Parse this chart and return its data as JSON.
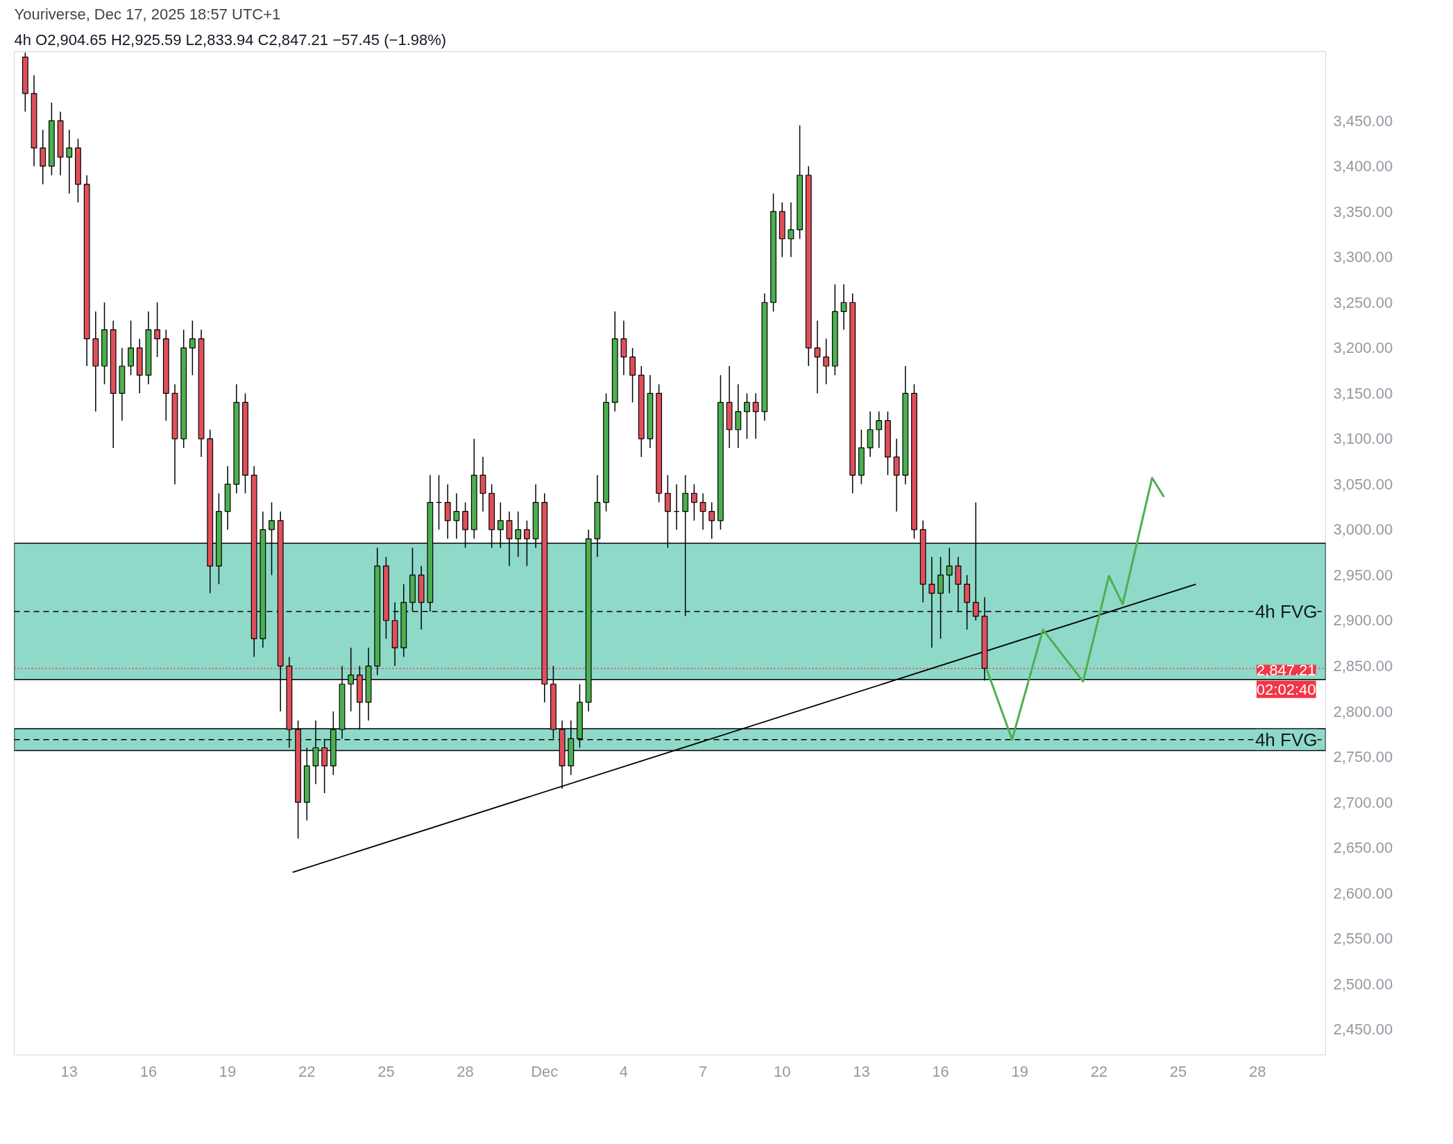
{
  "chart_data": {
    "type": "candlestick",
    "title": "Youriverse, Dec 17, 2025 18:57 UTC+1",
    "subtitle": "4h  O2,904.65  H2,925.59  L2,833.94  C2,847.21  −57.45 (−1.98%)",
    "x": [
      "2025-11-11T08:00",
      "2025-11-11T16:00",
      "2025-11-12T00:00",
      "2025-11-12T08:00",
      "2025-11-12T16:00",
      "2025-11-13T00:00",
      "2025-11-13T08:00",
      "2025-11-13T16:00",
      "2025-11-14T00:00",
      "2025-11-14T08:00",
      "2025-11-14T16:00",
      "2025-11-15T00:00",
      "2025-11-15T08:00",
      "2025-11-15T16:00",
      "2025-11-16T00:00",
      "2025-11-16T08:00",
      "2025-11-16T16:00",
      "2025-11-17T00:00",
      "2025-11-17T08:00",
      "2025-11-17T16:00",
      "2025-11-18T00:00",
      "2025-11-18T08:00",
      "2025-11-18T16:00",
      "2025-11-19T00:00",
      "2025-11-19T08:00",
      "2025-11-19T16:00",
      "2025-11-20T00:00",
      "2025-11-20T08:00",
      "2025-11-20T16:00",
      "2025-11-21T00:00",
      "2025-11-21T08:00",
      "2025-11-21T16:00",
      "2025-11-22T00:00",
      "2025-11-22T08:00",
      "2025-11-22T16:00",
      "2025-11-23T00:00",
      "2025-11-23T08:00",
      "2025-11-23T16:00",
      "2025-11-24T00:00",
      "2025-11-24T08:00",
      "2025-11-24T16:00",
      "2025-11-25T00:00",
      "2025-11-25T08:00",
      "2025-11-25T16:00",
      "2025-11-26T00:00",
      "2025-11-26T08:00",
      "2025-11-26T16:00",
      "2025-11-27T00:00",
      "2025-11-27T08:00",
      "2025-11-27T16:00",
      "2025-11-28T00:00",
      "2025-11-28T08:00",
      "2025-11-28T16:00",
      "2025-11-29T00:00",
      "2025-11-29T08:00",
      "2025-11-29T16:00",
      "2025-11-30T00:00",
      "2025-11-30T08:00",
      "2025-11-30T16:00",
      "2025-12-01T00:00",
      "2025-12-01T08:00",
      "2025-12-01T16:00",
      "2025-12-02T00:00",
      "2025-12-02T08:00",
      "2025-12-02T16:00",
      "2025-12-03T00:00",
      "2025-12-03T08:00",
      "2025-12-03T16:00",
      "2025-12-04T00:00",
      "2025-12-04T08:00",
      "2025-12-04T16:00",
      "2025-12-05T00:00",
      "2025-12-05T08:00",
      "2025-12-05T16:00",
      "2025-12-06T00:00",
      "2025-12-06T08:00",
      "2025-12-06T16:00",
      "2025-12-07T00:00",
      "2025-12-07T08:00",
      "2025-12-07T16:00",
      "2025-12-08T00:00",
      "2025-12-08T08:00",
      "2025-12-08T16:00",
      "2025-12-09T00:00",
      "2025-12-09T08:00",
      "2025-12-09T16:00",
      "2025-12-10T00:00",
      "2025-12-10T08:00",
      "2025-12-10T16:00",
      "2025-12-11T00:00",
      "2025-12-11T08:00",
      "2025-12-11T16:00",
      "2025-12-12T00:00",
      "2025-12-12T08:00",
      "2025-12-12T16:00",
      "2025-12-13T00:00",
      "2025-12-13T08:00",
      "2025-12-13T16:00",
      "2025-12-14T00:00",
      "2025-12-14T08:00",
      "2025-12-14T16:00",
      "2025-12-15T00:00",
      "2025-12-15T08:00",
      "2025-12-15T16:00",
      "2025-12-16T00:00",
      "2025-12-16T08:00",
      "2025-12-16T16:00",
      "2025-12-17T00:00",
      "2025-12-17T08:00",
      "2025-12-17T16:00"
    ],
    "ohlc": [
      [
        3520,
        3525,
        3460,
        3480
      ],
      [
        3480,
        3500,
        3400,
        3420
      ],
      [
        3420,
        3440,
        3380,
        3400
      ],
      [
        3400,
        3470,
        3390,
        3450
      ],
      [
        3450,
        3460,
        3390,
        3410
      ],
      [
        3410,
        3440,
        3370,
        3420
      ],
      [
        3420,
        3430,
        3360,
        3380
      ],
      [
        3380,
        3390,
        3180,
        3210
      ],
      [
        3210,
        3240,
        3130,
        3180
      ],
      [
        3180,
        3250,
        3160,
        3220
      ],
      [
        3220,
        3230,
        3090,
        3150
      ],
      [
        3150,
        3200,
        3120,
        3180
      ],
      [
        3180,
        3230,
        3170,
        3200
      ],
      [
        3200,
        3210,
        3150,
        3170
      ],
      [
        3170,
        3240,
        3160,
        3220
      ],
      [
        3220,
        3250,
        3190,
        3210
      ],
      [
        3210,
        3220,
        3120,
        3150
      ],
      [
        3150,
        3160,
        3050,
        3100
      ],
      [
        3100,
        3220,
        3090,
        3200
      ],
      [
        3200,
        3230,
        3170,
        3210
      ],
      [
        3210,
        3220,
        3080,
        3100
      ],
      [
        3100,
        3110,
        2930,
        2960
      ],
      [
        2960,
        3040,
        2940,
        3020
      ],
      [
        3020,
        3070,
        3000,
        3050
      ],
      [
        3050,
        3160,
        3040,
        3140
      ],
      [
        3140,
        3150,
        3040,
        3060
      ],
      [
        3060,
        3070,
        2860,
        2880
      ],
      [
        2880,
        3020,
        2870,
        3000
      ],
      [
        3000,
        3030,
        2950,
        3010
      ],
      [
        3010,
        3020,
        2800,
        2850
      ],
      [
        2850,
        2860,
        2760,
        2780
      ],
      [
        2780,
        2790,
        2660,
        2700
      ],
      [
        2700,
        2760,
        2680,
        2740
      ],
      [
        2740,
        2790,
        2720,
        2760
      ],
      [
        2760,
        2770,
        2710,
        2740
      ],
      [
        2740,
        2800,
        2730,
        2780
      ],
      [
        2780,
        2850,
        2770,
        2830
      ],
      [
        2830,
        2870,
        2800,
        2840
      ],
      [
        2840,
        2850,
        2780,
        2810
      ],
      [
        2810,
        2870,
        2790,
        2850
      ],
      [
        2850,
        2980,
        2840,
        2960
      ],
      [
        2960,
        2970,
        2880,
        2900
      ],
      [
        2900,
        2920,
        2850,
        2870
      ],
      [
        2870,
        2940,
        2860,
        2920
      ],
      [
        2920,
        2980,
        2910,
        2950
      ],
      [
        2950,
        2960,
        2890,
        2920
      ],
      [
        2920,
        3060,
        2910,
        3030
      ],
      [
        3030,
        3060,
        3000,
        3030
      ],
      [
        3030,
        3050,
        2990,
        3010
      ],
      [
        3010,
        3040,
        2990,
        3020
      ],
      [
        3020,
        3030,
        2980,
        3000
      ],
      [
        3000,
        3100,
        2990,
        3060
      ],
      [
        3060,
        3080,
        3020,
        3040
      ],
      [
        3040,
        3050,
        2980,
        3000
      ],
      [
        3000,
        3030,
        2980,
        3010
      ],
      [
        3010,
        3020,
        2960,
        2990
      ],
      [
        2990,
        3020,
        2970,
        3000
      ],
      [
        3000,
        3010,
        2960,
        2990
      ],
      [
        2990,
        3050,
        2980,
        3030
      ],
      [
        3030,
        3040,
        2810,
        2830
      ],
      [
        2830,
        2850,
        2770,
        2780
      ],
      [
        2780,
        2790,
        2715,
        2740
      ],
      [
        2740,
        2790,
        2730,
        2770
      ],
      [
        2770,
        2830,
        2760,
        2810
      ],
      [
        2810,
        3000,
        2800,
        2990
      ],
      [
        2990,
        3060,
        2970,
        3030
      ],
      [
        3030,
        3150,
        3020,
        3140
      ],
      [
        3140,
        3240,
        3130,
        3210
      ],
      [
        3210,
        3230,
        3170,
        3190
      ],
      [
        3190,
        3200,
        3140,
        3170
      ],
      [
        3170,
        3180,
        3080,
        3100
      ],
      [
        3100,
        3170,
        3090,
        3150
      ],
      [
        3150,
        3160,
        3030,
        3040
      ],
      [
        3040,
        3060,
        2980,
        3020
      ],
      [
        3020,
        3050,
        3000,
        3020
      ],
      [
        3020,
        3060,
        2905,
        3040
      ],
      [
        3040,
        3050,
        3010,
        3030
      ],
      [
        3030,
        3040,
        3000,
        3020
      ],
      [
        3020,
        3030,
        2990,
        3010
      ],
      [
        3010,
        3170,
        3000,
        3140
      ],
      [
        3140,
        3180,
        3090,
        3110
      ],
      [
        3110,
        3160,
        3090,
        3130
      ],
      [
        3130,
        3150,
        3100,
        3140
      ],
      [
        3140,
        3150,
        3100,
        3130
      ],
      [
        3130,
        3260,
        3120,
        3250
      ],
      [
        3250,
        3370,
        3240,
        3350
      ],
      [
        3350,
        3360,
        3300,
        3320
      ],
      [
        3320,
        3360,
        3300,
        3330
      ],
      [
        3330,
        3445,
        3320,
        3390
      ],
      [
        3390,
        3400,
        3180,
        3200
      ],
      [
        3200,
        3230,
        3150,
        3190
      ],
      [
        3190,
        3210,
        3160,
        3180
      ],
      [
        3180,
        3270,
        3170,
        3240
      ],
      [
        3240,
        3270,
        3220,
        3250
      ],
      [
        3250,
        3260,
        3040,
        3060
      ],
      [
        3060,
        3110,
        3050,
        3090
      ],
      [
        3090,
        3130,
        3080,
        3110
      ],
      [
        3110,
        3130,
        3090,
        3120
      ],
      [
        3120,
        3130,
        3060,
        3080
      ],
      [
        3080,
        3100,
        3020,
        3060
      ],
      [
        3060,
        3180,
        3050,
        3150
      ],
      [
        3150,
        3160,
        2990,
        3000
      ],
      [
        3000,
        3010,
        2920,
        2940
      ],
      [
        2940,
        2970,
        2870,
        2930
      ],
      [
        2930,
        2970,
        2880,
        2950
      ],
      [
        2950,
        2980,
        2930,
        2960
      ],
      [
        2960,
        2970,
        2910,
        2940
      ],
      [
        2940,
        2950,
        2890,
        2920
      ],
      [
        2920,
        3030,
        2900,
        2904.65
      ],
      [
        2904.65,
        2925.59,
        2833.94,
        2847.21
      ]
    ],
    "series": [
      {
        "type": "line",
        "color": "#000000",
        "x": [
          "2025-11-21T11:00",
          "2025-12-25T16:00"
        ],
        "values": [
          2623,
          2940
        ]
      },
      {
        "type": "line",
        "color": "#4caf50",
        "x": [
          "2025-12-17T18:00",
          "2025-12-18T17:00",
          "2025-12-19T21:00",
          "2025-12-21T09:30",
          "2025-12-22T09:00",
          "2025-12-22T21:30",
          "2025-12-24T00:15",
          "2025-12-24T11:00"
        ],
        "values": [
          2846,
          2769,
          2890,
          2833,
          2949,
          2918,
          3057,
          3036
        ]
      }
    ],
    "bands": [
      {
        "axis": "y",
        "from": 2835,
        "to": 2985,
        "label": "4h FVG",
        "color": "#8fd9c9"
      },
      {
        "axis": "y",
        "from": 2757,
        "to": 2781,
        "label": "4h FVG",
        "color": "#8fd9c9"
      }
    ],
    "ref_lines": [
      {
        "axis": "y",
        "value": 2910,
        "label": null,
        "color": "#000000",
        "line_style": "dashed"
      },
      {
        "axis": "y",
        "value": 2769,
        "label": null,
        "color": "#000000",
        "line_style": "dashed"
      },
      {
        "axis": "y",
        "value": 2847.21,
        "label": "2,847.21",
        "color": "#f23645",
        "line_style": "dotted"
      }
    ],
    "annotations": [
      "02:02:40"
    ],
    "xlim": [
      "2025-11-10T22:00",
      "2025-12-30T14:00"
    ],
    "xticks": [
      {
        "value": "2025-11-13",
        "label": "13"
      },
      {
        "value": "2025-11-16",
        "label": "16"
      },
      {
        "value": "2025-11-19",
        "label": "19"
      },
      {
        "value": "2025-11-22",
        "label": "22"
      },
      {
        "value": "2025-11-25",
        "label": "25"
      },
      {
        "value": "2025-11-28",
        "label": "28"
      },
      {
        "value": "2025-12-01",
        "label": "Dec"
      },
      {
        "value": "2025-12-04",
        "label": "4"
      },
      {
        "value": "2025-12-07",
        "label": "7"
      },
      {
        "value": "2025-12-10",
        "label": "10"
      },
      {
        "value": "2025-12-13",
        "label": "13"
      },
      {
        "value": "2025-12-16",
        "label": "16"
      },
      {
        "value": "2025-12-19",
        "label": "19"
      },
      {
        "value": "2025-12-22",
        "label": "22"
      },
      {
        "value": "2025-12-25",
        "label": "25"
      },
      {
        "value": "2025-12-28",
        "label": "28"
      }
    ],
    "ylim": [
      2422,
      3526
    ],
    "yticks": [
      {
        "value": 2450,
        "label": "2,450.00"
      },
      {
        "value": 2500,
        "label": "2,500.00"
      },
      {
        "value": 2550,
        "label": "2,550.00"
      },
      {
        "value": 2600,
        "label": "2,600.00"
      },
      {
        "value": 2650,
        "label": "2,650.00"
      },
      {
        "value": 2700,
        "label": "2,700.00"
      },
      {
        "value": 2750,
        "label": "2,750.00"
      },
      {
        "value": 2800,
        "label": "2,800.00"
      },
      {
        "value": 2850,
        "label": "2,850.00"
      },
      {
        "value": 2900,
        "label": "2,900.00"
      },
      {
        "value": 2950,
        "label": "2,950.00"
      },
      {
        "value": 3000,
        "label": "3,000.00"
      },
      {
        "value": 3050,
        "label": "3,050.00"
      },
      {
        "value": 3100,
        "label": "3,100.00"
      },
      {
        "value": 3150,
        "label": "3,150.00"
      },
      {
        "value": 3200,
        "label": "3,200.00"
      },
      {
        "value": 3250,
        "label": "3,250.00"
      },
      {
        "value": 3300,
        "label": "3,300.00"
      },
      {
        "value": 3350,
        "label": "3,350.00"
      },
      {
        "value": 3400,
        "label": "3,400.00"
      },
      {
        "value": 3450,
        "label": "3,450.00"
      }
    ],
    "grid": false
  }
}
